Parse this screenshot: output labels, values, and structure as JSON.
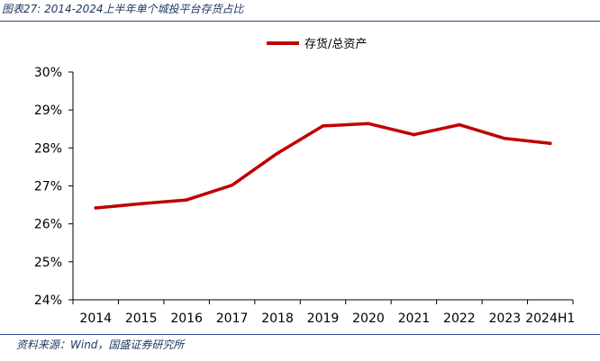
{
  "figure_title": "图表27:  2014-2024上半年单个城投平台存货占比",
  "source_text": "资料来源：Wind，国盛证券研究所",
  "colors": {
    "line": "#c00000",
    "axis": "#000000",
    "header": "#1f3864"
  },
  "chart_data": {
    "type": "line",
    "categories": [
      "2014",
      "2015",
      "2016",
      "2017",
      "2018",
      "2019",
      "2020",
      "2021",
      "2022",
      "2023",
      "2024H1"
    ],
    "series": [
      {
        "name": "存货/总资产",
        "values": [
          26.42,
          26.53,
          26.63,
          27.02,
          27.86,
          28.58,
          28.64,
          28.35,
          28.61,
          28.25,
          28.12
        ]
      }
    ],
    "ylim": [
      24,
      30
    ],
    "yticks": [
      "24%",
      "25%",
      "26%",
      "27%",
      "28%",
      "29%",
      "30%"
    ],
    "y_unit": "%",
    "grid": false,
    "legend": "top-center"
  }
}
